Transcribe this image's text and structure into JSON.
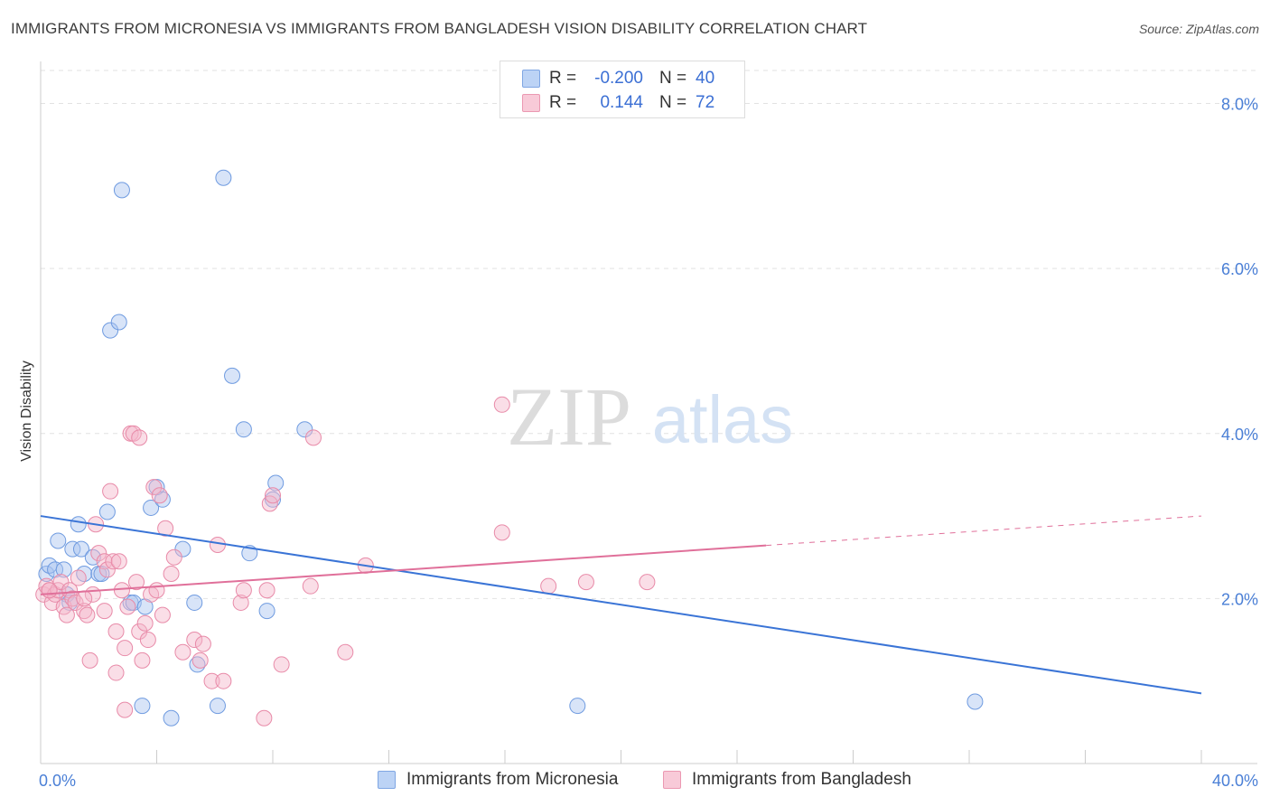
{
  "title": "IMMIGRANTS FROM MICRONESIA VS IMMIGRANTS FROM BANGLADESH VISION DISABILITY CORRELATION CHART",
  "source": "Source: ZipAtlas.com",
  "watermark": {
    "zip": "ZIP",
    "atlas": "atlas"
  },
  "legend_top": [
    {
      "r_label": "R =",
      "r_value": "-0.200",
      "n_label": "N =",
      "n_value": "40",
      "color": "#a8c4ef"
    },
    {
      "r_label": "R =",
      "r_value": "0.144",
      "n_label": "N =",
      "n_value": "72",
      "color": "#f4b6c9"
    }
  ],
  "legend_bottom": [
    {
      "label": "Immigrants from Micronesia",
      "color": "#a8c4ef"
    },
    {
      "label": "Immigrants from Bangladesh",
      "color": "#f4b6c9"
    }
  ],
  "chart_data": {
    "type": "scatter",
    "title": "IMMIGRANTS FROM MICRONESIA VS IMMIGRANTS FROM BANGLADESH VISION DISABILITY CORRELATION CHART",
    "xlabel": "",
    "ylabel": "Vision Disability",
    "xlim": [
      0,
      40
    ],
    "ylim": [
      0,
      8.4
    ],
    "x_tick_labels": [
      "0.0%",
      "40.0%"
    ],
    "y_ticks": [
      2,
      4,
      6,
      8
    ],
    "y_tick_labels": [
      "2.0%",
      "4.0%",
      "6.0%",
      "8.0%"
    ],
    "grid": true,
    "legend_position": "top-center",
    "series": [
      {
        "name": "Immigrants from Micronesia",
        "color": "#a8c4ef",
        "stroke": "#6f9be0",
        "trend": {
          "x": [
            0,
            40
          ],
          "y": [
            3.0,
            0.85
          ],
          "dashed_from": null
        },
        "points": [
          [
            0.2,
            2.3
          ],
          [
            0.3,
            2.4
          ],
          [
            0.5,
            2.35
          ],
          [
            0.6,
            2.7
          ],
          [
            0.8,
            2.35
          ],
          [
            0.9,
            2.05
          ],
          [
            1.0,
            1.95
          ],
          [
            1.1,
            2.6
          ],
          [
            1.3,
            2.9
          ],
          [
            1.4,
            2.6
          ],
          [
            1.5,
            2.3
          ],
          [
            1.8,
            2.5
          ],
          [
            2.0,
            2.3
          ],
          [
            2.1,
            2.3
          ],
          [
            2.3,
            3.05
          ],
          [
            2.4,
            5.25
          ],
          [
            2.7,
            5.35
          ],
          [
            2.8,
            6.95
          ],
          [
            3.1,
            1.95
          ],
          [
            3.2,
            1.95
          ],
          [
            3.5,
            0.7
          ],
          [
            3.6,
            1.9
          ],
          [
            3.8,
            3.1
          ],
          [
            4.0,
            3.35
          ],
          [
            4.2,
            3.2
          ],
          [
            4.5,
            0.55
          ],
          [
            4.9,
            2.6
          ],
          [
            5.3,
            1.95
          ],
          [
            5.4,
            1.2
          ],
          [
            6.1,
            0.7
          ],
          [
            6.3,
            7.1
          ],
          [
            6.6,
            4.7
          ],
          [
            7.0,
            4.05
          ],
          [
            7.2,
            2.55
          ],
          [
            7.8,
            1.85
          ],
          [
            8.0,
            3.2
          ],
          [
            8.1,
            3.4
          ],
          [
            9.1,
            4.05
          ],
          [
            18.5,
            0.7
          ],
          [
            32.2,
            0.75
          ]
        ]
      },
      {
        "name": "Immigrants from Bangladesh",
        "color": "#f4b6c9",
        "stroke": "#e88aa8",
        "trend": {
          "x": [
            0,
            40
          ],
          "y": [
            2.05,
            3.0
          ],
          "dashed_from": 25
        },
        "points": [
          [
            0.1,
            2.05
          ],
          [
            0.2,
            2.15
          ],
          [
            0.3,
            2.1
          ],
          [
            0.4,
            1.95
          ],
          [
            0.5,
            2.05
          ],
          [
            0.6,
            2.1
          ],
          [
            0.7,
            2.2
          ],
          [
            0.8,
            1.9
          ],
          [
            0.9,
            1.8
          ],
          [
            1.0,
            2.1
          ],
          [
            1.1,
            2.0
          ],
          [
            1.2,
            1.95
          ],
          [
            1.3,
            2.25
          ],
          [
            1.5,
            1.85
          ],
          [
            1.6,
            1.8
          ],
          [
            1.7,
            1.25
          ],
          [
            1.8,
            2.05
          ],
          [
            1.9,
            2.9
          ],
          [
            2.0,
            2.55
          ],
          [
            2.2,
            2.45
          ],
          [
            2.3,
            2.35
          ],
          [
            2.4,
            3.3
          ],
          [
            2.5,
            2.45
          ],
          [
            2.6,
            1.6
          ],
          [
            2.6,
            1.1
          ],
          [
            2.7,
            2.45
          ],
          [
            2.8,
            2.1
          ],
          [
            2.9,
            1.4
          ],
          [
            2.9,
            0.65
          ],
          [
            3.0,
            1.9
          ],
          [
            3.1,
            4.0
          ],
          [
            3.2,
            4.0
          ],
          [
            3.3,
            2.2
          ],
          [
            3.4,
            3.95
          ],
          [
            3.4,
            1.6
          ],
          [
            3.5,
            1.25
          ],
          [
            3.6,
            1.7
          ],
          [
            3.7,
            1.5
          ],
          [
            3.8,
            2.05
          ],
          [
            3.9,
            3.35
          ],
          [
            4.0,
            2.1
          ],
          [
            4.1,
            3.25
          ],
          [
            4.2,
            1.8
          ],
          [
            4.3,
            2.85
          ],
          [
            4.5,
            2.3
          ],
          [
            4.6,
            2.5
          ],
          [
            4.9,
            1.35
          ],
          [
            5.3,
            1.5
          ],
          [
            5.5,
            1.25
          ],
          [
            5.6,
            1.45
          ],
          [
            5.9,
            1.0
          ],
          [
            6.1,
            2.65
          ],
          [
            6.3,
            1.0
          ],
          [
            6.9,
            1.95
          ],
          [
            7.0,
            2.1
          ],
          [
            7.7,
            0.55
          ],
          [
            7.8,
            2.1
          ],
          [
            7.9,
            3.15
          ],
          [
            8.0,
            3.25
          ],
          [
            8.3,
            1.2
          ],
          [
            9.3,
            2.15
          ],
          [
            9.4,
            3.95
          ],
          [
            10.5,
            1.35
          ],
          [
            11.2,
            2.4
          ],
          [
            15.9,
            4.35
          ],
          [
            15.9,
            2.8
          ],
          [
            17.5,
            2.15
          ],
          [
            18.8,
            2.2
          ],
          [
            20.9,
            2.2
          ],
          [
            0.3,
            2.1
          ],
          [
            1.5,
            2.0
          ],
          [
            2.2,
            1.85
          ]
        ]
      }
    ]
  }
}
